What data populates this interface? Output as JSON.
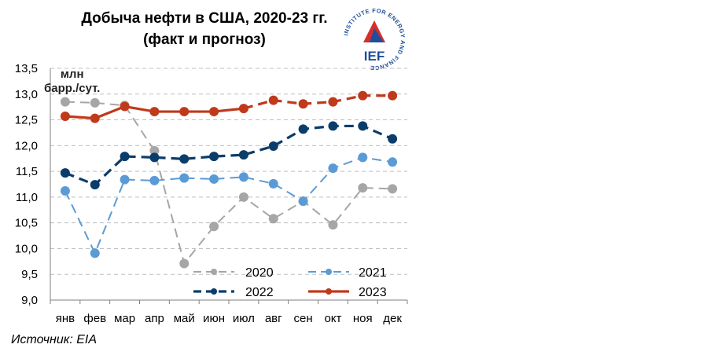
{
  "title_line1": "Добыча  нефти в США, 2020-23 гг.",
  "title_line2": "(факт и прогноз)",
  "unit_line1": "млн",
  "unit_line2": "барр./сут.",
  "source": "Источник:  EIA",
  "logo": {
    "ring_text": "INSTITUTE FOR ENERGY AND FINANCE",
    "abbr": "IEF",
    "colors": {
      "ring_text": "#1f4e9a",
      "abbr": "#1f4e9a",
      "triangle_red": "#d32f2f",
      "triangle_blue": "#1f4e9a"
    }
  },
  "chart_data": {
    "type": "line",
    "categories": [
      "янв",
      "фев",
      "мар",
      "апр",
      "май",
      "июн",
      "июл",
      "авг",
      "сен",
      "окт",
      "ноя",
      "дек"
    ],
    "ylim": [
      9.0,
      13.5
    ],
    "yticks": [
      "9,0",
      "9,5",
      "10,0",
      "10,5",
      "11,0",
      "11,5",
      "12,0",
      "12,5",
      "13,0",
      "13,5"
    ],
    "grid": true,
    "legend_position": "bottom-right inside plot",
    "series": [
      {
        "name": "2020",
        "color": "#a6a6a6",
        "dashed": true,
        "values": [
          12.85,
          12.83,
          12.78,
          11.9,
          9.71,
          10.43,
          11.0,
          10.58,
          10.92,
          10.46,
          11.18,
          11.16
        ]
      },
      {
        "name": "2021",
        "color": "#5b9bd5",
        "dashed": true,
        "values": [
          11.12,
          9.91,
          11.34,
          11.32,
          11.37,
          11.35,
          11.39,
          11.26,
          10.92,
          11.56,
          11.77,
          11.68
        ]
      },
      {
        "name": "2022",
        "color": "#0b3d6b",
        "dashed": true,
        "values": [
          11.47,
          11.24,
          11.79,
          11.77,
          11.74,
          11.79,
          11.82,
          11.99,
          12.32,
          12.38,
          12.38,
          12.13
        ]
      },
      {
        "name": "2023",
        "color": "#c0391b",
        "dashed": false,
        "dashed_from_index": 6,
        "values": [
          12.57,
          12.53,
          12.76,
          12.66,
          12.66,
          12.66,
          12.72,
          12.88,
          12.81,
          12.85,
          12.97,
          12.97
        ]
      }
    ]
  }
}
